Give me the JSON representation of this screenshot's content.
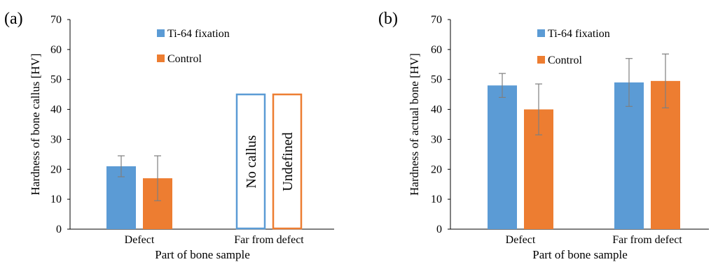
{
  "chart_data": [
    {
      "type": "bar",
      "panel_label": "(a)",
      "categories": [
        "Defect",
        "Far from defect"
      ],
      "series": [
        {
          "name": "Ti-64 fixation",
          "color": "#5B9BD5",
          "values": [
            21,
            null
          ],
          "errors": [
            3.5,
            null
          ]
        },
        {
          "name": "Control",
          "color": "#ED7D31",
          "values": [
            17,
            null
          ],
          "errors": [
            7.5,
            null
          ]
        }
      ],
      "annotations": [
        {
          "text": "No callus",
          "series": 0,
          "category": 1,
          "value": 45,
          "style": "outline"
        },
        {
          "text": "Undefined",
          "series": 1,
          "category": 1,
          "value": 45,
          "style": "outline"
        }
      ],
      "xlabel": "Part of bone sample",
      "ylabel": "Hardness of bone callus [HV]",
      "ylim": [
        0,
        70
      ],
      "yticks": [
        0,
        10,
        20,
        30,
        40,
        50,
        60,
        70
      ],
      "grid": false,
      "legend_position": "top-left inside"
    },
    {
      "type": "bar",
      "panel_label": "(b)",
      "categories": [
        "Defect",
        "Far from defect"
      ],
      "series": [
        {
          "name": "Ti-64 fixation",
          "color": "#5B9BD5",
          "values": [
            48,
            49
          ],
          "errors": [
            4,
            8
          ]
        },
        {
          "name": "Control",
          "color": "#ED7D31",
          "values": [
            40,
            49.5
          ],
          "errors": [
            8.5,
            9
          ]
        }
      ],
      "annotations": [],
      "xlabel": "Part of bone sample",
      "ylabel": "Hardness of actual bone [HV]",
      "ylim": [
        0,
        70
      ],
      "yticks": [
        0,
        10,
        20,
        30,
        40,
        50,
        60,
        70
      ],
      "grid": false,
      "legend_position": "top-left inside"
    }
  ]
}
